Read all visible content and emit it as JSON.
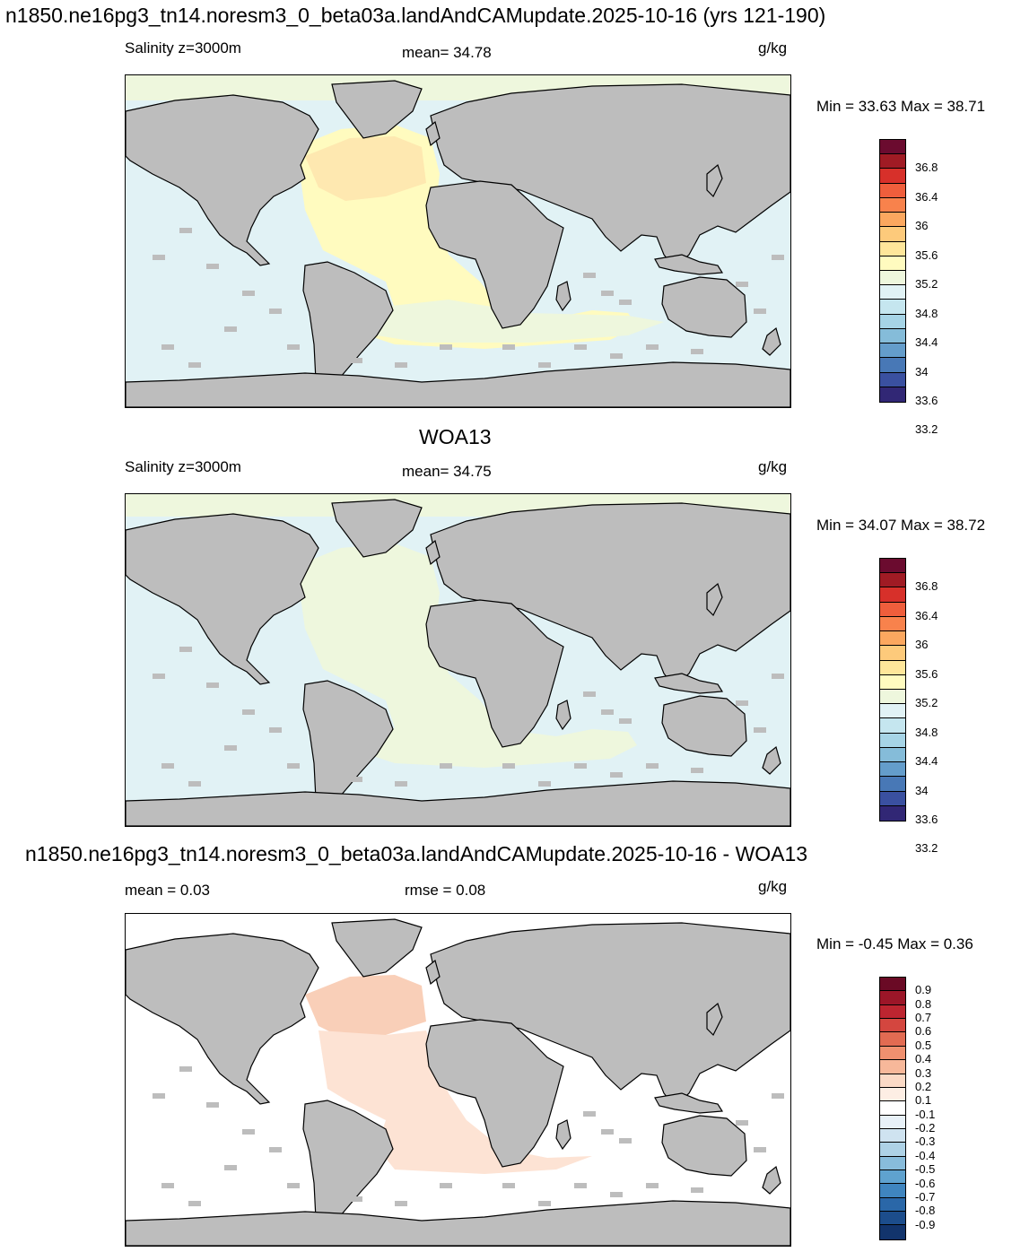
{
  "main_title": "n1850.ne16pg3_tn14.noresm3_0_beta03a.landAndCAMupdate.2025-10-16 (yrs 121-190)",
  "panels": [
    {
      "heading": "",
      "left_label": "Salinity z=3000m",
      "center_label": "mean=  34.78",
      "unit": "g/kg",
      "minmax": "Min =  33.63 Max =  38.71",
      "colorbar": {
        "colors": [
          "#6b0b2f",
          "#a01b24",
          "#d7302a",
          "#ef5e3c",
          "#f8824c",
          "#fba75f",
          "#fdca7b",
          "#fee69a",
          "#fffbbf",
          "#eef7dd",
          "#e1f2f5",
          "#c5e6ef",
          "#a6d4e6",
          "#85bcd9",
          "#649dcb",
          "#4878b6",
          "#3a50a0",
          "#312775"
        ],
        "labels": [
          "36.8",
          "36.4",
          "36",
          "35.6",
          "35.2",
          "34.8",
          "34.4",
          "34",
          "33.6",
          "33.2"
        ],
        "label_boundaries": [
          2,
          4,
          6,
          8,
          10,
          12,
          14,
          16,
          18,
          20
        ]
      }
    },
    {
      "heading": "WOA13",
      "left_label": "Salinity z=3000m",
      "center_label": "mean=  34.75",
      "unit": "g/kg",
      "minmax": "Min =  34.07 Max =  38.72",
      "colorbar": {
        "colors": [
          "#6b0b2f",
          "#a01b24",
          "#d7302a",
          "#ef5e3c",
          "#f8824c",
          "#fba75f",
          "#fdca7b",
          "#fee69a",
          "#fffbbf",
          "#eef7dd",
          "#e1f2f5",
          "#c5e6ef",
          "#a6d4e6",
          "#85bcd9",
          "#649dcb",
          "#4878b6",
          "#3a50a0",
          "#312775"
        ],
        "labels": [
          "36.8",
          "36.4",
          "36",
          "35.6",
          "35.2",
          "34.8",
          "34.4",
          "34",
          "33.6",
          "33.2"
        ],
        "label_boundaries": [
          2,
          4,
          6,
          8,
          10,
          12,
          14,
          16,
          18,
          20
        ]
      }
    },
    {
      "heading": "n1850.ne16pg3_tn14.noresm3_0_beta03a.landAndCAMupdate.2025-10-16 - WOA13",
      "left_label": "mean =   0.03",
      "center_label": "rmse =   0.08",
      "unit": "g/kg",
      "minmax": "Min =  -0.45 Max =   0.36",
      "colorbar": {
        "colors": [
          "#6a0a25",
          "#9c1628",
          "#bd2530",
          "#d4463f",
          "#e26b52",
          "#f0906f",
          "#f7b89a",
          "#fbdac6",
          "#fdeee4",
          "#ffffff",
          "#e8f1f8",
          "#cfe3f0",
          "#aed2e6",
          "#88bcdb",
          "#5fa2cf",
          "#3f85bf",
          "#2a67a8",
          "#1c4d8c",
          "#12346c"
        ],
        "labels": [
          "0.9",
          "0.8",
          "0.7",
          "0.6",
          "0.5",
          "0.4",
          "0.3",
          "0.2",
          "0.1",
          "-0.1",
          "-0.2",
          "-0.3",
          "-0.4",
          "-0.5",
          "-0.6",
          "-0.7",
          "-0.8",
          "-0.9"
        ],
        "label_boundaries": [
          1,
          2,
          3,
          4,
          5,
          6,
          7,
          8,
          9,
          10,
          11,
          12,
          13,
          14,
          15,
          16,
          17,
          18
        ]
      }
    }
  ],
  "map_colors": {
    "land": "#bdbdbd",
    "panel1_ocean": "#e1f2f5",
    "panel1_atlantic_north": "#fee8b0",
    "panel1_atlantic": "#fffbbf",
    "panel1_south": "#eef7dd",
    "panel1_arctic": "#eef7dd",
    "panel2_ocean": "#e1f2f5",
    "panel2_atlantic": "#eef7dd",
    "panel2_arctic": "#eef7dd",
    "panel3_ocean": "#ffffff",
    "panel3_atlantic_north": "#f9cfb8",
    "panel3_atlantic": "#fde3d4"
  }
}
